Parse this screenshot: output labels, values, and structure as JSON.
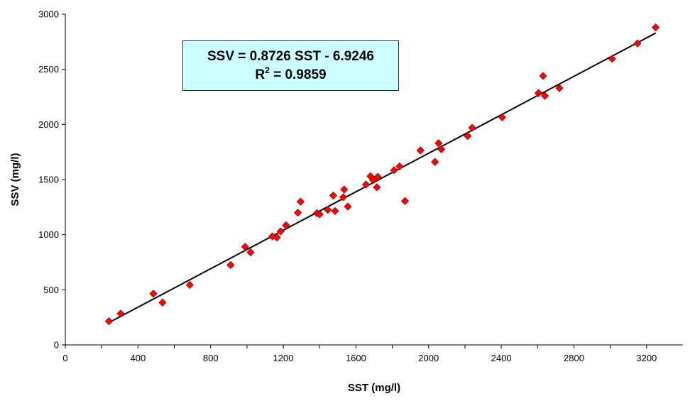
{
  "chart_data": {
    "type": "scatter",
    "xlabel": "SST (mg/l)",
    "ylabel": "SSV (mg/l)",
    "xlim": [
      0,
      3400
    ],
    "ylim": [
      0,
      3000
    ],
    "x_ticks": [
      0,
      400,
      800,
      1200,
      1600,
      2000,
      2400,
      2800,
      3200
    ],
    "y_ticks": [
      0,
      500,
      1000,
      1500,
      2000,
      2500,
      3000
    ],
    "grid": false,
    "legend": "none",
    "marker_color": "#ff0000",
    "marker_shape": "diamond",
    "trendline": {
      "slope": 0.8726,
      "intercept": -6.9246,
      "x_range": [
        240,
        3250
      ]
    },
    "annotation": {
      "equation": "SSV = 0.8726 SST - 6.9246",
      "r2_prefix": "R",
      "r2_exponent": "2",
      "r2_suffix": " = 0.9859"
    },
    "points": [
      [
        240,
        215
      ],
      [
        305,
        285
      ],
      [
        485,
        465
      ],
      [
        535,
        385
      ],
      [
        685,
        545
      ],
      [
        910,
        725
      ],
      [
        990,
        890
      ],
      [
        1020,
        840
      ],
      [
        1140,
        985
      ],
      [
        1165,
        975
      ],
      [
        1185,
        1030
      ],
      [
        1215,
        1085
      ],
      [
        1280,
        1200
      ],
      [
        1295,
        1300
      ],
      [
        1385,
        1195
      ],
      [
        1400,
        1185
      ],
      [
        1445,
        1225
      ],
      [
        1475,
        1355
      ],
      [
        1485,
        1215
      ],
      [
        1530,
        1340
      ],
      [
        1535,
        1410
      ],
      [
        1555,
        1255
      ],
      [
        1655,
        1455
      ],
      [
        1680,
        1530
      ],
      [
        1695,
        1495
      ],
      [
        1715,
        1430
      ],
      [
        1720,
        1525
      ],
      [
        1810,
        1585
      ],
      [
        1840,
        1620
      ],
      [
        1870,
        1305
      ],
      [
        1955,
        1765
      ],
      [
        2035,
        1660
      ],
      [
        2055,
        1830
      ],
      [
        2070,
        1775
      ],
      [
        2215,
        1895
      ],
      [
        2240,
        1970
      ],
      [
        2405,
        2065
      ],
      [
        2605,
        2285
      ],
      [
        2630,
        2440
      ],
      [
        2640,
        2260
      ],
      [
        2720,
        2330
      ],
      [
        3010,
        2595
      ],
      [
        3150,
        2735
      ],
      [
        3250,
        2880
      ]
    ]
  }
}
